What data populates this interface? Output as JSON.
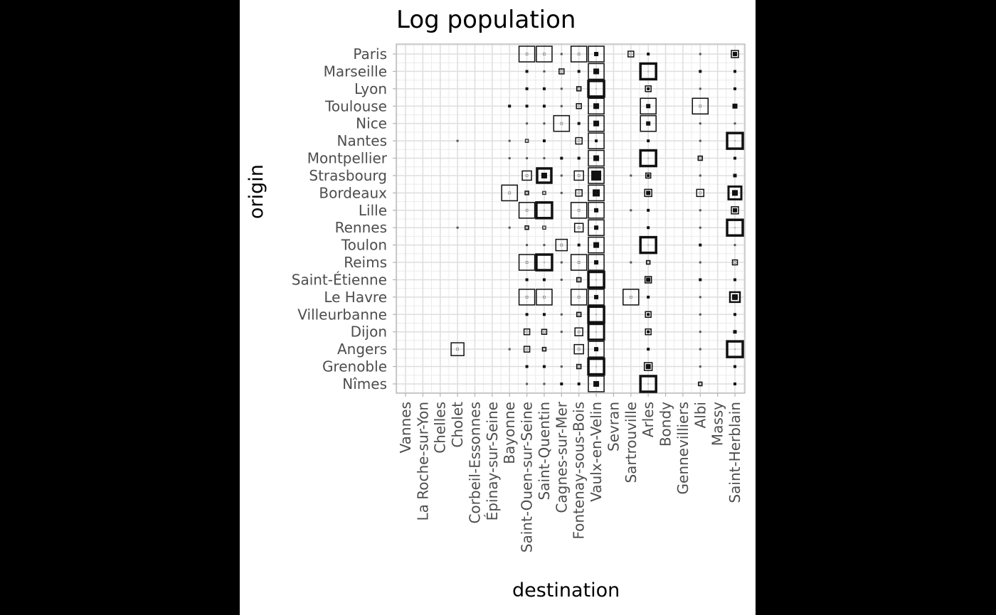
{
  "chart_data": {
    "type": "heatmap",
    "title": "Log population",
    "xlabel": "destination",
    "ylabel": "origin",
    "y_categories": [
      "Paris",
      "Marseille",
      "Lyon",
      "Toulouse",
      "Nice",
      "Nantes",
      "Montpellier",
      "Strasbourg",
      "Bordeaux",
      "Lille",
      "Rennes",
      "Toulon",
      "Reims",
      "Saint-Étienne",
      "Le Havre",
      "Villeurbanne",
      "Dijon",
      "Angers",
      "Grenoble",
      "Nîmes"
    ],
    "x_categories": [
      "Vannes",
      "La Roche-sur-Yon",
      "Chelles",
      "Cholet",
      "Corbeil-Essonnes",
      "Épinay-sur-Seine",
      "Bayonne",
      "Saint-Ouen-sur-Seine",
      "Saint-Quentin",
      "Cagnes-sur-Mer",
      "Fontenay-sous-Bois",
      "Vaulx-en-Velin",
      "Sevran",
      "Sartrouville",
      "Arles",
      "Bondy",
      "Gennevilliers",
      "Albi",
      "Massy",
      "Saint-Herblain"
    ],
    "grid": true,
    "legend": "none",
    "cell_encoding": "[row, col, outer_size_px, stroke_px, inner_size_px]",
    "cells": [
      [
        0,
        7,
        22,
        1.5,
        3
      ],
      [
        0,
        8,
        22,
        1.5,
        3
      ],
      [
        0,
        9,
        3,
        0,
        0
      ],
      [
        0,
        10,
        22,
        1.5,
        3
      ],
      [
        0,
        11,
        22,
        1.5,
        6
      ],
      [
        0,
        13,
        8,
        1.5,
        3
      ],
      [
        0,
        14,
        4,
        0,
        0
      ],
      [
        0,
        17,
        3,
        0,
        0
      ],
      [
        0,
        19,
        10,
        1.5,
        6
      ],
      [
        1,
        7,
        4,
        0,
        0
      ],
      [
        1,
        8,
        3,
        0,
        0
      ],
      [
        1,
        9,
        7,
        1.5,
        3
      ],
      [
        1,
        10,
        4,
        0,
        0
      ],
      [
        1,
        11,
        22,
        1.5,
        8
      ],
      [
        1,
        14,
        22,
        3.5,
        0
      ],
      [
        1,
        17,
        4,
        0,
        0
      ],
      [
        1,
        19,
        4,
        0,
        0
      ],
      [
        2,
        7,
        4,
        0,
        0
      ],
      [
        2,
        8,
        4,
        0,
        0
      ],
      [
        2,
        9,
        3,
        0,
        0
      ],
      [
        2,
        10,
        6,
        1.5,
        3
      ],
      [
        2,
        11,
        22,
        3.5,
        0
      ],
      [
        2,
        14,
        8,
        1.5,
        4
      ],
      [
        2,
        17,
        3,
        0,
        0
      ],
      [
        2,
        19,
        4,
        0,
        0
      ],
      [
        3,
        6,
        4,
        0,
        0
      ],
      [
        3,
        7,
        4,
        0,
        0
      ],
      [
        3,
        8,
        4,
        0,
        0
      ],
      [
        3,
        9,
        3,
        0,
        0
      ],
      [
        3,
        10,
        7,
        1.5,
        3
      ],
      [
        3,
        11,
        22,
        1.5,
        8
      ],
      [
        3,
        14,
        22,
        1.5,
        6
      ],
      [
        3,
        17,
        22,
        1.5,
        3
      ],
      [
        3,
        19,
        7,
        0,
        0
      ],
      [
        4,
        7,
        3,
        0,
        0
      ],
      [
        4,
        8,
        3,
        0,
        0
      ],
      [
        4,
        9,
        22,
        1.5,
        3
      ],
      [
        4,
        10,
        4,
        0,
        0
      ],
      [
        4,
        11,
        22,
        1.5,
        8
      ],
      [
        4,
        14,
        22,
        1.5,
        6
      ],
      [
        4,
        17,
        3,
        0,
        0
      ],
      [
        4,
        19,
        3,
        0,
        0
      ],
      [
        5,
        3,
        3,
        0,
        0
      ],
      [
        5,
        6,
        3,
        0,
        0
      ],
      [
        5,
        7,
        4,
        1.5,
        2
      ],
      [
        5,
        8,
        4,
        0,
        0
      ],
      [
        5,
        10,
        9,
        1.5,
        3
      ],
      [
        5,
        11,
        22,
        1.5,
        4
      ],
      [
        5,
        14,
        4,
        0,
        0
      ],
      [
        5,
        17,
        3,
        0,
        0
      ],
      [
        5,
        19,
        22,
        3.5,
        0
      ],
      [
        6,
        6,
        3,
        0,
        0
      ],
      [
        6,
        7,
        3,
        0,
        0
      ],
      [
        6,
        8,
        3,
        0,
        0
      ],
      [
        6,
        9,
        4,
        0,
        0
      ],
      [
        6,
        10,
        4,
        0,
        0
      ],
      [
        6,
        11,
        22,
        1.5,
        8
      ],
      [
        6,
        14,
        22,
        3.5,
        0
      ],
      [
        6,
        17,
        6,
        1.5,
        3
      ],
      [
        6,
        19,
        4,
        0,
        0
      ],
      [
        7,
        7,
        13,
        1.5,
        3
      ],
      [
        7,
        8,
        20,
        3.5,
        8
      ],
      [
        7,
        9,
        3,
        0,
        0
      ],
      [
        7,
        10,
        13,
        1.5,
        3
      ],
      [
        7,
        11,
        22,
        1.5,
        14
      ],
      [
        7,
        13,
        3,
        0,
        0
      ],
      [
        7,
        14,
        7,
        1.5,
        4
      ],
      [
        7,
        17,
        3,
        0,
        0
      ],
      [
        7,
        19,
        5,
        0,
        0
      ],
      [
        8,
        6,
        22,
        1.5,
        3
      ],
      [
        8,
        7,
        5,
        1.5,
        2
      ],
      [
        8,
        8,
        4,
        1.5,
        2
      ],
      [
        8,
        9,
        3,
        0,
        0
      ],
      [
        8,
        10,
        9,
        1.5,
        3
      ],
      [
        8,
        11,
        22,
        1.5,
        10
      ],
      [
        8,
        14,
        10,
        1.5,
        6
      ],
      [
        8,
        17,
        10,
        1.5,
        3
      ],
      [
        8,
        19,
        18,
        3,
        8
      ],
      [
        9,
        7,
        22,
        1.5,
        3
      ],
      [
        9,
        8,
        22,
        3.5,
        0
      ],
      [
        9,
        10,
        22,
        1.5,
        3
      ],
      [
        9,
        11,
        22,
        1.5,
        6
      ],
      [
        9,
        13,
        3,
        0,
        0
      ],
      [
        9,
        14,
        4,
        0,
        0
      ],
      [
        9,
        17,
        3,
        0,
        0
      ],
      [
        9,
        19,
        10,
        1.5,
        6
      ],
      [
        10,
        3,
        3,
        0,
        0
      ],
      [
        10,
        6,
        3,
        0,
        0
      ],
      [
        10,
        7,
        5,
        1.5,
        2
      ],
      [
        10,
        8,
        4,
        1.5,
        2
      ],
      [
        10,
        10,
        12,
        1.5,
        3
      ],
      [
        10,
        11,
        22,
        1.5,
        6
      ],
      [
        10,
        14,
        4,
        0,
        0
      ],
      [
        10,
        17,
        3,
        0,
        0
      ],
      [
        10,
        19,
        22,
        3.5,
        0
      ],
      [
        11,
        7,
        3,
        0,
        0
      ],
      [
        11,
        8,
        3,
        0,
        0
      ],
      [
        11,
        9,
        16,
        1.5,
        3
      ],
      [
        11,
        10,
        4,
        0,
        0
      ],
      [
        11,
        11,
        22,
        1.5,
        8
      ],
      [
        11,
        14,
        22,
        3.5,
        0
      ],
      [
        11,
        17,
        4,
        0,
        0
      ],
      [
        11,
        19,
        3,
        0,
        0
      ],
      [
        12,
        7,
        22,
        1.5,
        3
      ],
      [
        12,
        8,
        22,
        3.5,
        0
      ],
      [
        12,
        9,
        3,
        0,
        0
      ],
      [
        12,
        10,
        22,
        1.5,
        3
      ],
      [
        12,
        11,
        22,
        1.5,
        6
      ],
      [
        12,
        13,
        3,
        0,
        0
      ],
      [
        12,
        14,
        5,
        1.5,
        2
      ],
      [
        12,
        17,
        3,
        0,
        0
      ],
      [
        12,
        19,
        7,
        1.5,
        3
      ],
      [
        13,
        7,
        4,
        0,
        0
      ],
      [
        13,
        8,
        4,
        0,
        0
      ],
      [
        13,
        9,
        3,
        0,
        0
      ],
      [
        13,
        10,
        6,
        1.5,
        2
      ],
      [
        13,
        11,
        22,
        3.5,
        0
      ],
      [
        13,
        14,
        9,
        1.5,
        6
      ],
      [
        13,
        17,
        4,
        0,
        0
      ],
      [
        13,
        19,
        4,
        0,
        0
      ],
      [
        14,
        7,
        22,
        1.5,
        3
      ],
      [
        14,
        8,
        22,
        1.5,
        3
      ],
      [
        14,
        10,
        22,
        1.5,
        3
      ],
      [
        14,
        11,
        22,
        1.5,
        6
      ],
      [
        14,
        13,
        22,
        1.5,
        3
      ],
      [
        14,
        14,
        4,
        0,
        0
      ],
      [
        14,
        17,
        3,
        0,
        0
      ],
      [
        14,
        19,
        14,
        2.5,
        8
      ],
      [
        15,
        7,
        4,
        0,
        0
      ],
      [
        15,
        8,
        4,
        0,
        0
      ],
      [
        15,
        9,
        3,
        0,
        0
      ],
      [
        15,
        10,
        6,
        1.5,
        3
      ],
      [
        15,
        11,
        22,
        3.5,
        0
      ],
      [
        15,
        14,
        8,
        1.5,
        4
      ],
      [
        15,
        17,
        3,
        0,
        0
      ],
      [
        15,
        19,
        4,
        0,
        0
      ],
      [
        16,
        7,
        8,
        1.5,
        3
      ],
      [
        16,
        8,
        7,
        1.5,
        3
      ],
      [
        16,
        9,
        3,
        0,
        0
      ],
      [
        16,
        10,
        11,
        1.5,
        3
      ],
      [
        16,
        11,
        22,
        3,
        0
      ],
      [
        16,
        14,
        8,
        1.5,
        4
      ],
      [
        16,
        17,
        3,
        0,
        0
      ],
      [
        16,
        19,
        5,
        0,
        0
      ],
      [
        17,
        3,
        18,
        1.5,
        3
      ],
      [
        17,
        6,
        3,
        0,
        0
      ],
      [
        17,
        7,
        8,
        1.5,
        3
      ],
      [
        17,
        8,
        5,
        1.5,
        2
      ],
      [
        17,
        10,
        13,
        1.5,
        3
      ],
      [
        17,
        11,
        22,
        1.5,
        6
      ],
      [
        17,
        14,
        4,
        0,
        0
      ],
      [
        17,
        17,
        3,
        0,
        0
      ],
      [
        17,
        19,
        22,
        3.5,
        0
      ],
      [
        18,
        7,
        4,
        0,
        0
      ],
      [
        18,
        8,
        4,
        0,
        0
      ],
      [
        18,
        9,
        3,
        0,
        0
      ],
      [
        18,
        10,
        6,
        1.5,
        3
      ],
      [
        18,
        11,
        22,
        3.5,
        0
      ],
      [
        18,
        14,
        11,
        1.5,
        7
      ],
      [
        18,
        17,
        3,
        0,
        0
      ],
      [
        18,
        19,
        4,
        0,
        0
      ],
      [
        19,
        7,
        3,
        0,
        0
      ],
      [
        19,
        8,
        3,
        0,
        0
      ],
      [
        19,
        9,
        4,
        0,
        0
      ],
      [
        19,
        10,
        4,
        0,
        0
      ],
      [
        19,
        11,
        22,
        1.5,
        8
      ],
      [
        19,
        14,
        22,
        3.5,
        0
      ],
      [
        19,
        17,
        5,
        1.5,
        2
      ],
      [
        19,
        19,
        4,
        0,
        0
      ]
    ]
  }
}
